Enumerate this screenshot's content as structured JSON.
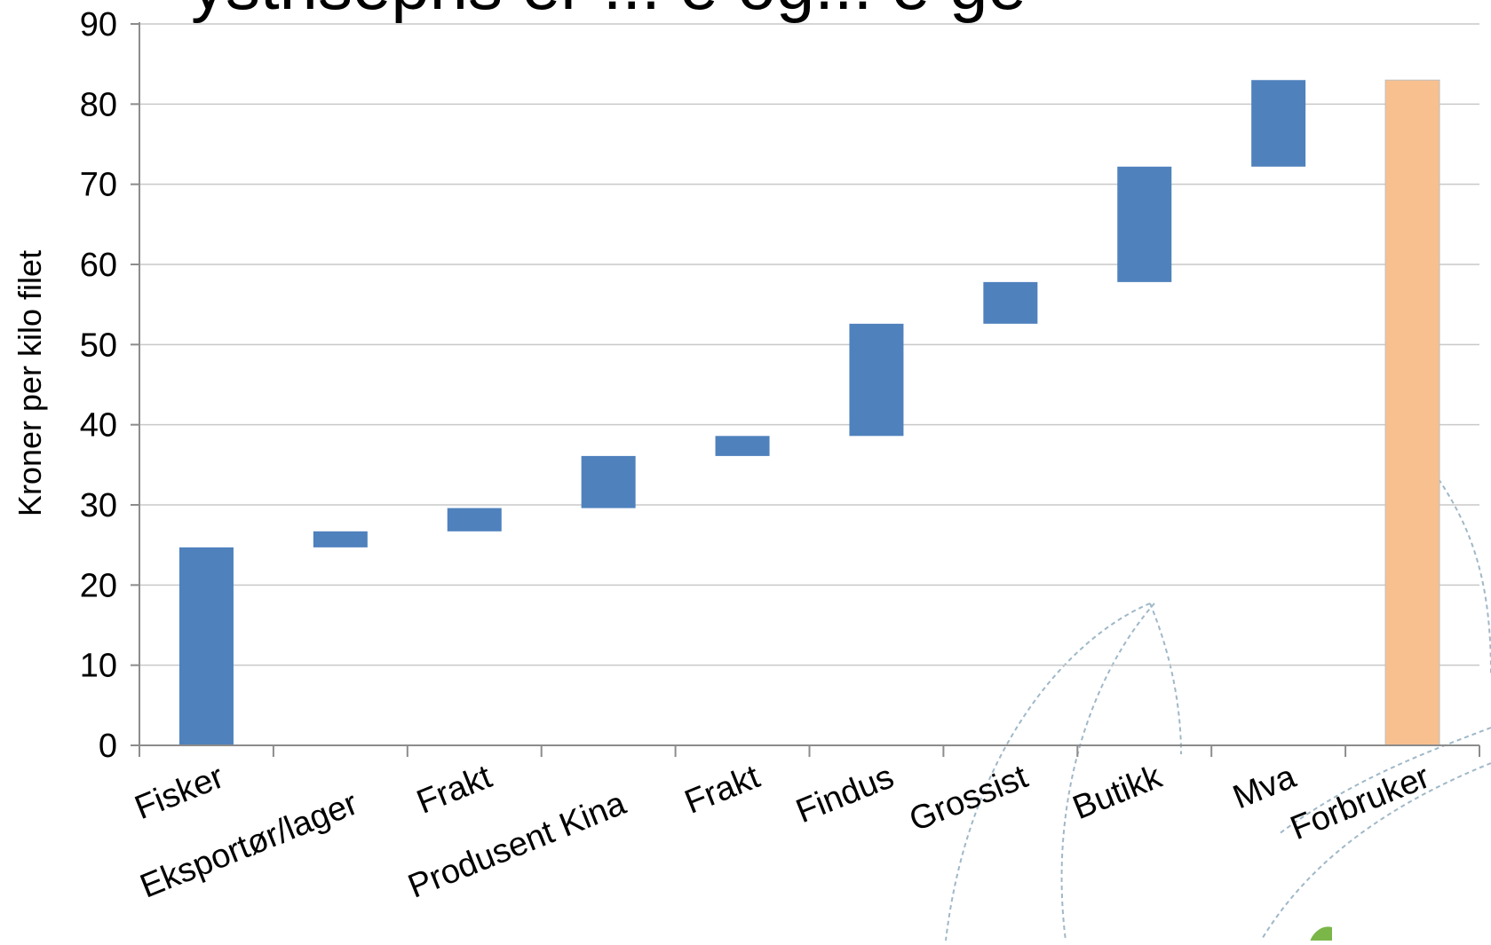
{
  "chart_data": {
    "type": "bar",
    "subtype": "waterfall",
    "categories": [
      "Fisker",
      "Eksportør/lager",
      "Frakt",
      "Produsent Kina",
      "Frakt",
      "Findus",
      "Grossist",
      "Butikk",
      "Mva",
      "Forbruker"
    ],
    "series": [
      {
        "bottoms": [
          0,
          24.7,
          26.7,
          29.6,
          36.1,
          38.6,
          52.6,
          57.8,
          72.2,
          0
        ],
        "tops": [
          24.7,
          26.7,
          29.6,
          36.1,
          38.6,
          52.6,
          57.8,
          72.2,
          83.0,
          83.0
        ]
      }
    ],
    "total_index": 9,
    "ylabel": "Kroner per kilo filet",
    "xlabel": "",
    "ylim": [
      0,
      90
    ],
    "yticks": [
      0,
      10,
      20,
      30,
      40,
      50,
      60,
      70,
      80,
      90
    ],
    "grid": true,
    "colors": {
      "step": "#4f81bd",
      "total": "#f8c08f",
      "total_edge": "#bfbfbf",
      "title": "#1f4e79"
    },
    "partial_title": "ystrisepris er ... e   og...  e   ge"
  }
}
